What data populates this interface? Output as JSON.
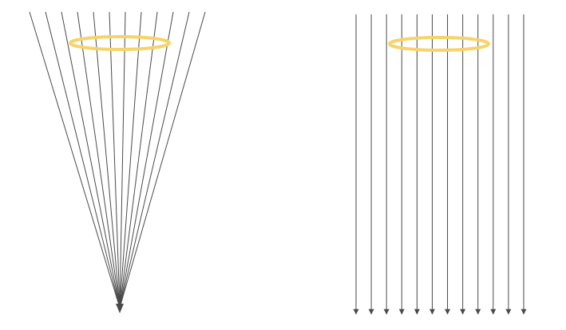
{
  "diagram": {
    "panels": [
      {
        "id": "converging",
        "projection": "perspective",
        "ray_count": 12,
        "ellipse_color": "#F7D36B",
        "ray_color": "#4A4A4A"
      },
      {
        "id": "parallel",
        "projection": "orthographic",
        "ray_count": 12,
        "ellipse_color": "#F7D36B",
        "ray_color": "#4A4A4A"
      }
    ]
  }
}
